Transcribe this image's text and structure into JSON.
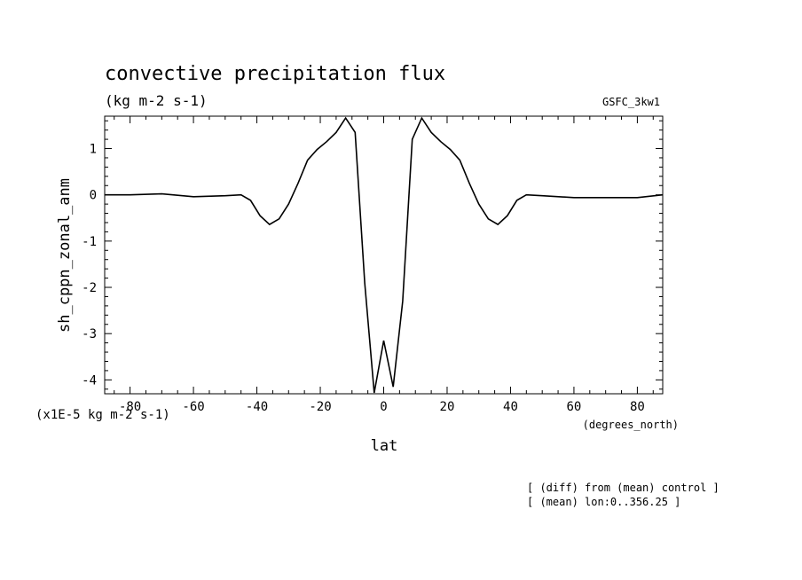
{
  "chart_data": {
    "type": "line",
    "title": "convective precipitation flux",
    "subtitle": "(kg m-2 s-1)",
    "model_label": "GSFC_3kw1",
    "xlabel": "lat",
    "x_units": "(degrees_north)",
    "ylabel": "sh_cppn_zonal_anm",
    "y_scale_note": "(x1E-5 kg m-2 s-1)",
    "notes": [
      "[ (diff) from (mean) control ]",
      "[ (mean) lon:0..356.25 ]"
    ],
    "xlim": [
      -88,
      88
    ],
    "ylim": [
      -4.3,
      1.7
    ],
    "x_ticks": [
      -80,
      -60,
      -40,
      -20,
      0,
      20,
      40,
      60,
      80
    ],
    "x_tick_labels": [
      "-80",
      "-60",
      "-40",
      "-20",
      "0",
      "20",
      "40",
      "60",
      "80"
    ],
    "y_ticks": [
      1,
      0,
      -1,
      -2,
      -3,
      -4
    ],
    "y_tick_labels": [
      "1",
      "0",
      "-1",
      "-2",
      "-3",
      "-4"
    ],
    "grid": false,
    "series": [
      {
        "x": [
          -88,
          -80,
          -70,
          -60,
          -50,
          -45,
          -42,
          -39,
          -36,
          -33,
          -30,
          -27,
          -24,
          -21,
          -18,
          -15,
          -12,
          -9,
          -6,
          -3,
          0,
          3,
          6,
          9,
          12,
          15,
          18,
          21,
          24,
          27,
          30,
          33,
          36,
          39,
          42,
          45,
          50,
          60,
          70,
          80,
          88
        ],
        "y": [
          0.0,
          0.0,
          0.02,
          -0.04,
          -0.02,
          0.0,
          -0.12,
          -0.45,
          -0.64,
          -0.52,
          -0.2,
          0.25,
          0.75,
          0.98,
          1.15,
          1.35,
          1.66,
          1.35,
          -1.9,
          -4.28,
          -3.15,
          -4.15,
          -2.3,
          1.2,
          1.66,
          1.35,
          1.15,
          0.98,
          0.75,
          0.25,
          -0.2,
          -0.52,
          -0.64,
          -0.45,
          -0.12,
          0.0,
          -0.02,
          -0.06,
          -0.06,
          -0.06,
          0.0
        ]
      }
    ]
  }
}
